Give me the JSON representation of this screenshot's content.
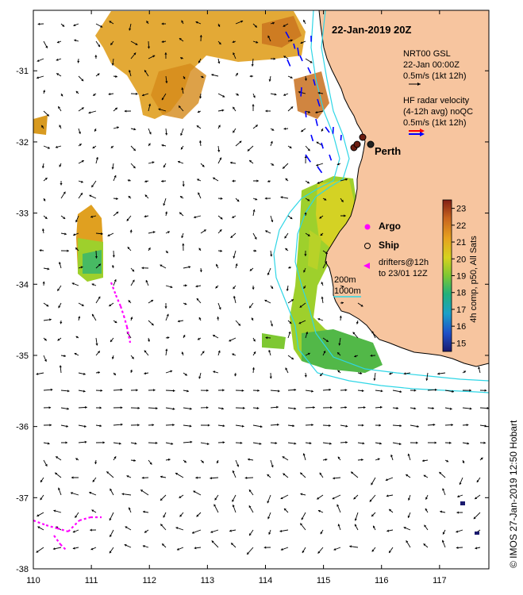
{
  "title": "22-Jan-2019 20Z",
  "legend": {
    "gsl_lines": [
      "NRT00 GSL",
      "22-Jan 00:00Z",
      "0.5m/s (1kt 12h)"
    ],
    "hf_lines": [
      "HF radar velocity",
      "(4-12h avg) noQC",
      "0.5m/s (1kt 12h)"
    ],
    "argo": "Argo",
    "ship": "Ship",
    "drifters_lines": [
      "drifters@12h",
      "to 23/01 12Z"
    ],
    "depth_200": "200m",
    "depth_1000": "1000m"
  },
  "place": {
    "perth": "Perth"
  },
  "colorbar": {
    "label": "4h comp, p50, All Sats",
    "ticks": [
      "15",
      "16",
      "17",
      "18",
      "19",
      "20",
      "21",
      "22",
      "23"
    ],
    "min": 14.5,
    "max": 23.5
  },
  "axes": {
    "x_ticks": [
      "110",
      "111",
      "112",
      "113",
      "114",
      "115",
      "116",
      "117"
    ],
    "y_ticks": [
      "-31",
      "-32",
      "-33",
      "-34",
      "-35",
      "-36",
      "-37",
      "-38"
    ],
    "x_range": [
      110,
      117.85
    ],
    "y_range": [
      -38,
      -30.15
    ]
  },
  "credit": "© IMOS 27-Jan-2019 12:50 Hobart",
  "colors": {
    "land": "#f7c59f",
    "isobath": "#2fd6e6",
    "hf_red": "#ff0000",
    "hf_blue": "#0000ff",
    "argo": "#ff00ff",
    "drifter": "#ff00ff"
  }
}
